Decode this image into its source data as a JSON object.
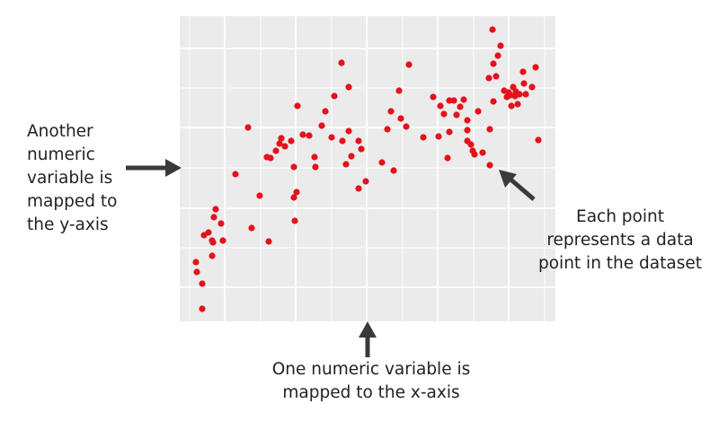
{
  "chart_data": {
    "type": "scatter",
    "color": "#e3121c",
    "grid": true,
    "panel_color": "#ebebeb",
    "xlim": [
      0,
      418
    ],
    "ylim": [
      0,
      340
    ],
    "xgrid": [
      11,
      50,
      90,
      129,
      169,
      208,
      248,
      287,
      327,
      366,
      406
    ],
    "ygrid": [
      38,
      82,
      126,
      171,
      216,
      260,
      304
    ],
    "x": [
      18,
      19,
      25,
      25,
      27,
      32,
      36,
      36,
      37,
      40,
      38,
      46,
      48,
      62,
      76,
      80,
      89,
      97,
      99,
      101,
      107,
      111,
      113,
      117,
      124,
      127,
      127,
      128,
      130,
      131,
      137,
      144,
      150,
      151,
      158,
      162,
      169,
      172,
      180,
      181,
      185,
      188,
      188,
      191,
      199,
      199,
      202,
      207,
      225,
      231,
      235,
      238,
      244,
      246,
      252,
      255,
      271,
      282,
      288,
      290,
      294,
      298,
      300,
      300,
      305,
      308,
      312,
      316,
      320,
      320,
      320,
      324,
      326,
      328,
      332,
      337,
      344,
      345,
      345,
      348,
      349,
      349,
      352,
      354,
      357,
      361,
      364,
      366,
      368,
      369,
      371,
      373,
      374,
      376,
      378,
      382,
      383,
      385,
      392,
      396,
      399
    ],
    "y": [
      66,
      55,
      42,
      14,
      96,
      99,
      90,
      73,
      88,
      125,
      116,
      109,
      90,
      164,
      216,
      104,
      140,
      183,
      89,
      182,
      190,
      198,
      204,
      195,
      201,
      172,
      138,
      112,
      144,
      240,
      208,
      207,
      183,
      172,
      218,
      234,
      205,
      251,
      288,
      201,
      175,
      212,
      261,
      184,
      201,
      148,
      192,
      156,
      177,
      214,
      234,
      168,
      257,
      226,
      217,
      286,
      205,
      250,
      206,
      240,
      231,
      182,
      211,
      246,
      246,
      230,
      239,
      247,
      224,
      213,
      201,
      197,
      190,
      186,
      234,
      188,
      271,
      214,
      174,
      325,
      245,
      287,
      273,
      296,
      307,
      257,
      250,
      255,
      252,
      240,
      261,
      251,
      256,
      242,
      253,
      278,
      265,
      253,
      261,
      283,
      202
    ],
    "annotations": {
      "left": [
        "Another",
        "numeric",
        "variable is",
        "mapped to",
        "the y-axis"
      ],
      "bottom": [
        "One numeric variable is",
        "mapped to the x-axis"
      ],
      "right": [
        "Each point",
        "represents a data",
        "point in the dataset"
      ]
    }
  }
}
